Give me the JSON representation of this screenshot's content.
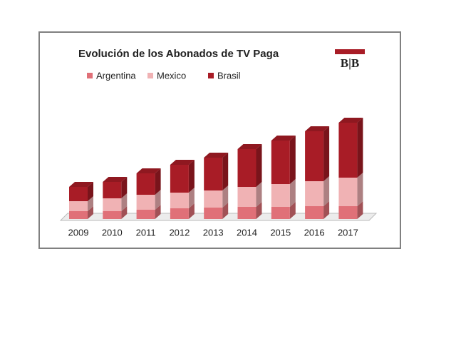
{
  "chart_data": {
    "type": "bar3d_stacked",
    "title": "Evolución de los Abonados de TV Paga",
    "logo": "B|B",
    "categories": [
      "2009",
      "2010",
      "2011",
      "2012",
      "2013",
      "2014",
      "2015",
      "2016",
      "2017"
    ],
    "series": [
      {
        "name": "Argentina",
        "color": "#e07078",
        "values": [
          11,
          11,
          13,
          15,
          16,
          17,
          17,
          18,
          18
        ]
      },
      {
        "name": "Mexico",
        "color": "#f0b2b4",
        "values": [
          14,
          18,
          21,
          22,
          24,
          28,
          32,
          35,
          40
        ]
      },
      {
        "name": "Brasil",
        "color": "#a81c26",
        "values": [
          20,
          23,
          30,
          39,
          46,
          53,
          61,
          70,
          77
        ]
      }
    ],
    "ylim": [
      0,
      150
    ]
  }
}
